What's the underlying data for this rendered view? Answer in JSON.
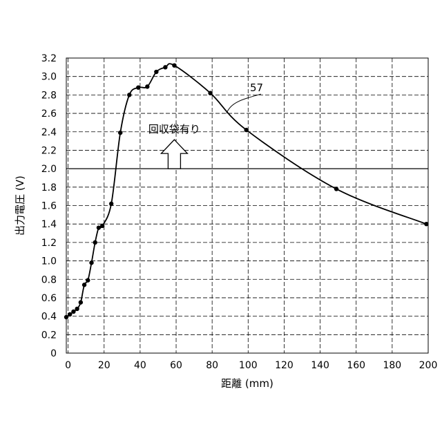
{
  "chart_data": {
    "type": "line",
    "xlabel": "距離 (mm)",
    "ylabel": "出力電圧 (V)",
    "xlim": [
      -1,
      200
    ],
    "ylim": [
      0,
      3.2
    ],
    "x_ticks": [
      "0",
      "20",
      "40",
      "60",
      "80",
      "100",
      "120",
      "140",
      "160",
      "180",
      "200"
    ],
    "y_ticks": [
      "0",
      "0.2",
      "0.4",
      "0.6",
      "0.8",
      "1.0",
      "1.2",
      "1.4",
      "1.6",
      "1.8",
      "2.0",
      "2.2",
      "2.4",
      "2.6",
      "2.8",
      "3.0",
      "3.2"
    ],
    "grid": true,
    "threshold": 2.0,
    "series": [
      {
        "name": "57",
        "points": [
          [
            -1,
            0.39
          ],
          [
            1,
            0.42
          ],
          [
            3,
            0.45
          ],
          [
            5,
            0.48
          ],
          [
            7,
            0.55
          ],
          [
            9,
            0.74
          ],
          [
            11,
            0.79
          ],
          [
            13,
            0.98
          ],
          [
            15,
            1.2
          ],
          [
            17,
            1.36
          ],
          [
            19,
            1.38
          ],
          [
            24,
            1.62
          ],
          [
            29,
            2.39
          ],
          [
            34,
            2.8
          ],
          [
            39,
            2.88
          ],
          [
            44,
            2.89
          ],
          [
            49,
            3.05
          ],
          [
            54,
            3.1
          ],
          [
            59,
            3.12
          ],
          [
            79,
            2.82
          ],
          [
            99,
            2.42
          ],
          [
            149,
            1.78
          ],
          [
            199,
            1.4
          ]
        ]
      }
    ],
    "annotations": [
      {
        "text": "回収袋有り"
      },
      {
        "text": "57"
      }
    ]
  }
}
